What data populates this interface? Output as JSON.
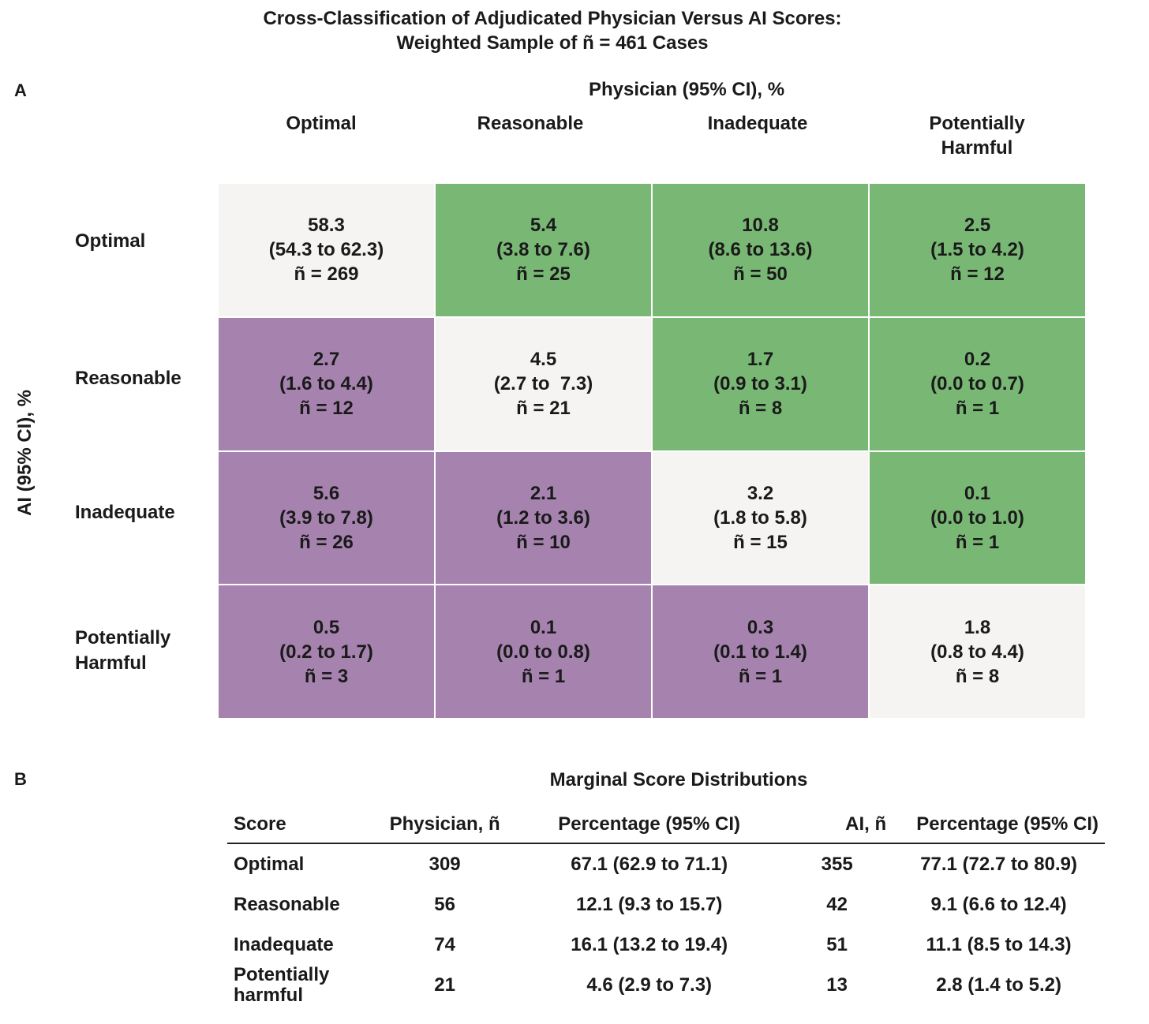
{
  "title": {
    "line1": "Cross-Classification of Adjudicated Physician Versus AI Scores:",
    "line2": "Weighted Sample of ñ = 461 Cases"
  },
  "panel_a": {
    "letter": "A",
    "x_axis_title": "Physician (95% CI), %",
    "y_axis_title": "AI (95% CI),  %",
    "column_headers": [
      "Optimal",
      "Reasonable",
      "Inadequate",
      "Potentially Harmful"
    ],
    "row_headers": [
      "Optimal",
      "Reasonable",
      "Inadequate",
      "Potentially Harmful"
    ]
  },
  "chart_data": {
    "type": "heatmap",
    "title": "Cross-Classification of Adjudicated Physician Versus AI Scores: Weighted Sample of ñ = 461 Cases",
    "xlabel": "Physician (95% CI), %",
    "ylabel": "AI (95% CI), %",
    "columns": [
      "Optimal",
      "Reasonable",
      "Inadequate",
      "Potentially Harmful"
    ],
    "rows": [
      "Optimal",
      "Reasonable",
      "Inadequate",
      "Potentially Harmful"
    ],
    "colors": {
      "agreement": "#f5f4f2",
      "ai_better": "#79b874",
      "physician_better": "#a683ae"
    },
    "cells": [
      [
        {
          "pct": "58.3",
          "ci": "(54.3 to 62.3)",
          "n": "ñ = 269",
          "group": "agreement"
        },
        {
          "pct": "5.4",
          "ci": "(3.8 to 7.6)",
          "n": "ñ = 25",
          "group": "ai_better"
        },
        {
          "pct": "10.8",
          "ci": "(8.6 to 13.6)",
          "n": "ñ = 50",
          "group": "ai_better"
        },
        {
          "pct": "2.5",
          "ci": "(1.5 to 4.2)",
          "n": "ñ = 12",
          "group": "ai_better"
        }
      ],
      [
        {
          "pct": "2.7",
          "ci": "(1.6 to 4.4)",
          "n": "ñ = 12",
          "group": "physician_better"
        },
        {
          "pct": "4.5",
          "ci": "(2.7 to  7.3)",
          "n": "ñ = 21",
          "group": "agreement"
        },
        {
          "pct": "1.7",
          "ci": "(0.9 to 3.1)",
          "n": "ñ = 8",
          "group": "ai_better"
        },
        {
          "pct": "0.2",
          "ci": "(0.0 to 0.7)",
          "n": "ñ = 1",
          "group": "ai_better"
        }
      ],
      [
        {
          "pct": "5.6",
          "ci": "(3.9 to 7.8)",
          "n": "ñ = 26",
          "group": "physician_better"
        },
        {
          "pct": "2.1",
          "ci": "(1.2 to 3.6)",
          "n": "ñ = 10",
          "group": "physician_better"
        },
        {
          "pct": "3.2",
          "ci": "(1.8 to 5.8)",
          "n": "ñ = 15",
          "group": "agreement"
        },
        {
          "pct": "0.1",
          "ci": "(0.0 to 1.0)",
          "n": "ñ = 1",
          "group": "ai_better"
        }
      ],
      [
        {
          "pct": "0.5",
          "ci": "(0.2 to 1.7)",
          "n": "ñ = 3",
          "group": "physician_better"
        },
        {
          "pct": "0.1",
          "ci": "(0.0 to 0.8)",
          "n": "ñ = 1",
          "group": "physician_better"
        },
        {
          "pct": "0.3",
          "ci": "(0.1 to 1.4)",
          "n": "ñ = 1",
          "group": "physician_better"
        },
        {
          "pct": "1.8",
          "ci": "(0.8 to 4.4)",
          "n": "ñ = 8",
          "group": "agreement"
        }
      ]
    ]
  },
  "panel_b": {
    "letter": "B",
    "title": "Marginal Score Distributions",
    "headers": {
      "score": "Score",
      "physician_n": "Physician, ñ",
      "physician_pct": "Percentage (95% CI)",
      "ai_n": "AI, ñ",
      "ai_pct": "Percentage (95% CI)"
    },
    "rows": [
      {
        "score": "Optimal",
        "physician_n": "309",
        "physician_pct": "67.1 (62.9 to 71.1)",
        "ai_n": "355",
        "ai_pct": "77.1 (72.7 to 80.9)"
      },
      {
        "score": "Reasonable",
        "physician_n": "56",
        "physician_pct": "12.1 (9.3 to 15.7)",
        "ai_n": "42",
        "ai_pct": "9.1 (6.6 to 12.4)"
      },
      {
        "score": "Inadequate",
        "physician_n": "74",
        "physician_pct": "16.1 (13.2 to 19.4)",
        "ai_n": "51",
        "ai_pct": "11.1 (8.5 to 14.3)"
      },
      {
        "score": "Potentially harmful",
        "physician_n": "21",
        "physician_pct": "4.6 (2.9 to 7.3)",
        "ai_n": "13",
        "ai_pct": "2.8 (1.4 to 5.2)"
      }
    ]
  }
}
